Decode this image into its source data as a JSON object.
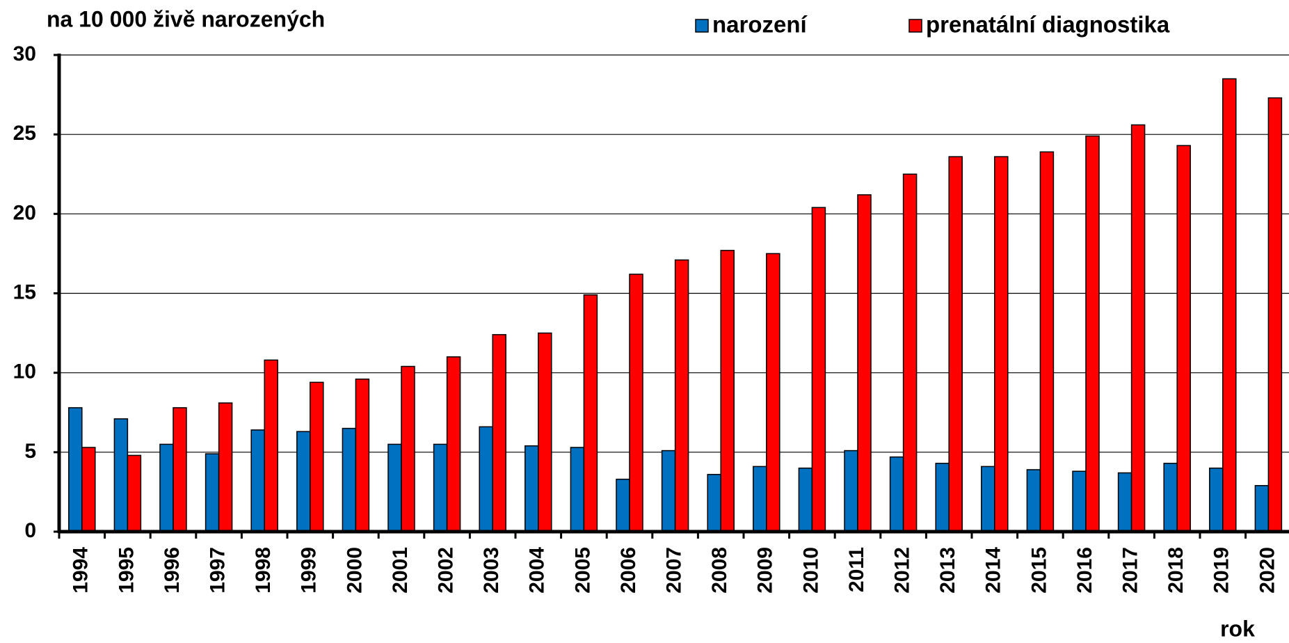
{
  "chart_data": {
    "type": "bar",
    "y_label": "na 10 000 živě narozených",
    "x_label": "rok",
    "categories": [
      "1994",
      "1995",
      "1996",
      "1997",
      "1998",
      "1999",
      "2000",
      "2001",
      "2002",
      "2003",
      "2004",
      "2005",
      "2006",
      "2007",
      "2008",
      "2009",
      "2010",
      "2011",
      "2012",
      "2013",
      "2014",
      "2015",
      "2016",
      "2017",
      "2018",
      "2019",
      "2020"
    ],
    "series": [
      {
        "name": "narození",
        "color": "#0070c0",
        "values": [
          7.8,
          7.1,
          5.5,
          4.9,
          6.4,
          6.3,
          6.5,
          5.5,
          5.5,
          6.6,
          5.4,
          5.3,
          3.3,
          5.1,
          3.6,
          4.1,
          4.0,
          5.1,
          4.7,
          4.3,
          4.1,
          3.9,
          3.8,
          3.7,
          4.3,
          4.0,
          2.9
        ]
      },
      {
        "name": "prenatální diagnostika",
        "color": "#ff0000",
        "values": [
          5.3,
          4.8,
          7.8,
          8.1,
          10.8,
          9.4,
          9.6,
          10.4,
          11.0,
          12.4,
          12.5,
          14.9,
          16.2,
          17.1,
          17.7,
          17.5,
          20.4,
          21.2,
          22.5,
          23.6,
          23.6,
          23.9,
          24.9,
          25.6,
          24.3,
          28.5,
          27.3
        ]
      }
    ],
    "ylim": [
      0,
      30
    ],
    "yticks": [
      0,
      5,
      10,
      15,
      20,
      25,
      30
    ],
    "grid": true,
    "legend": "top"
  }
}
